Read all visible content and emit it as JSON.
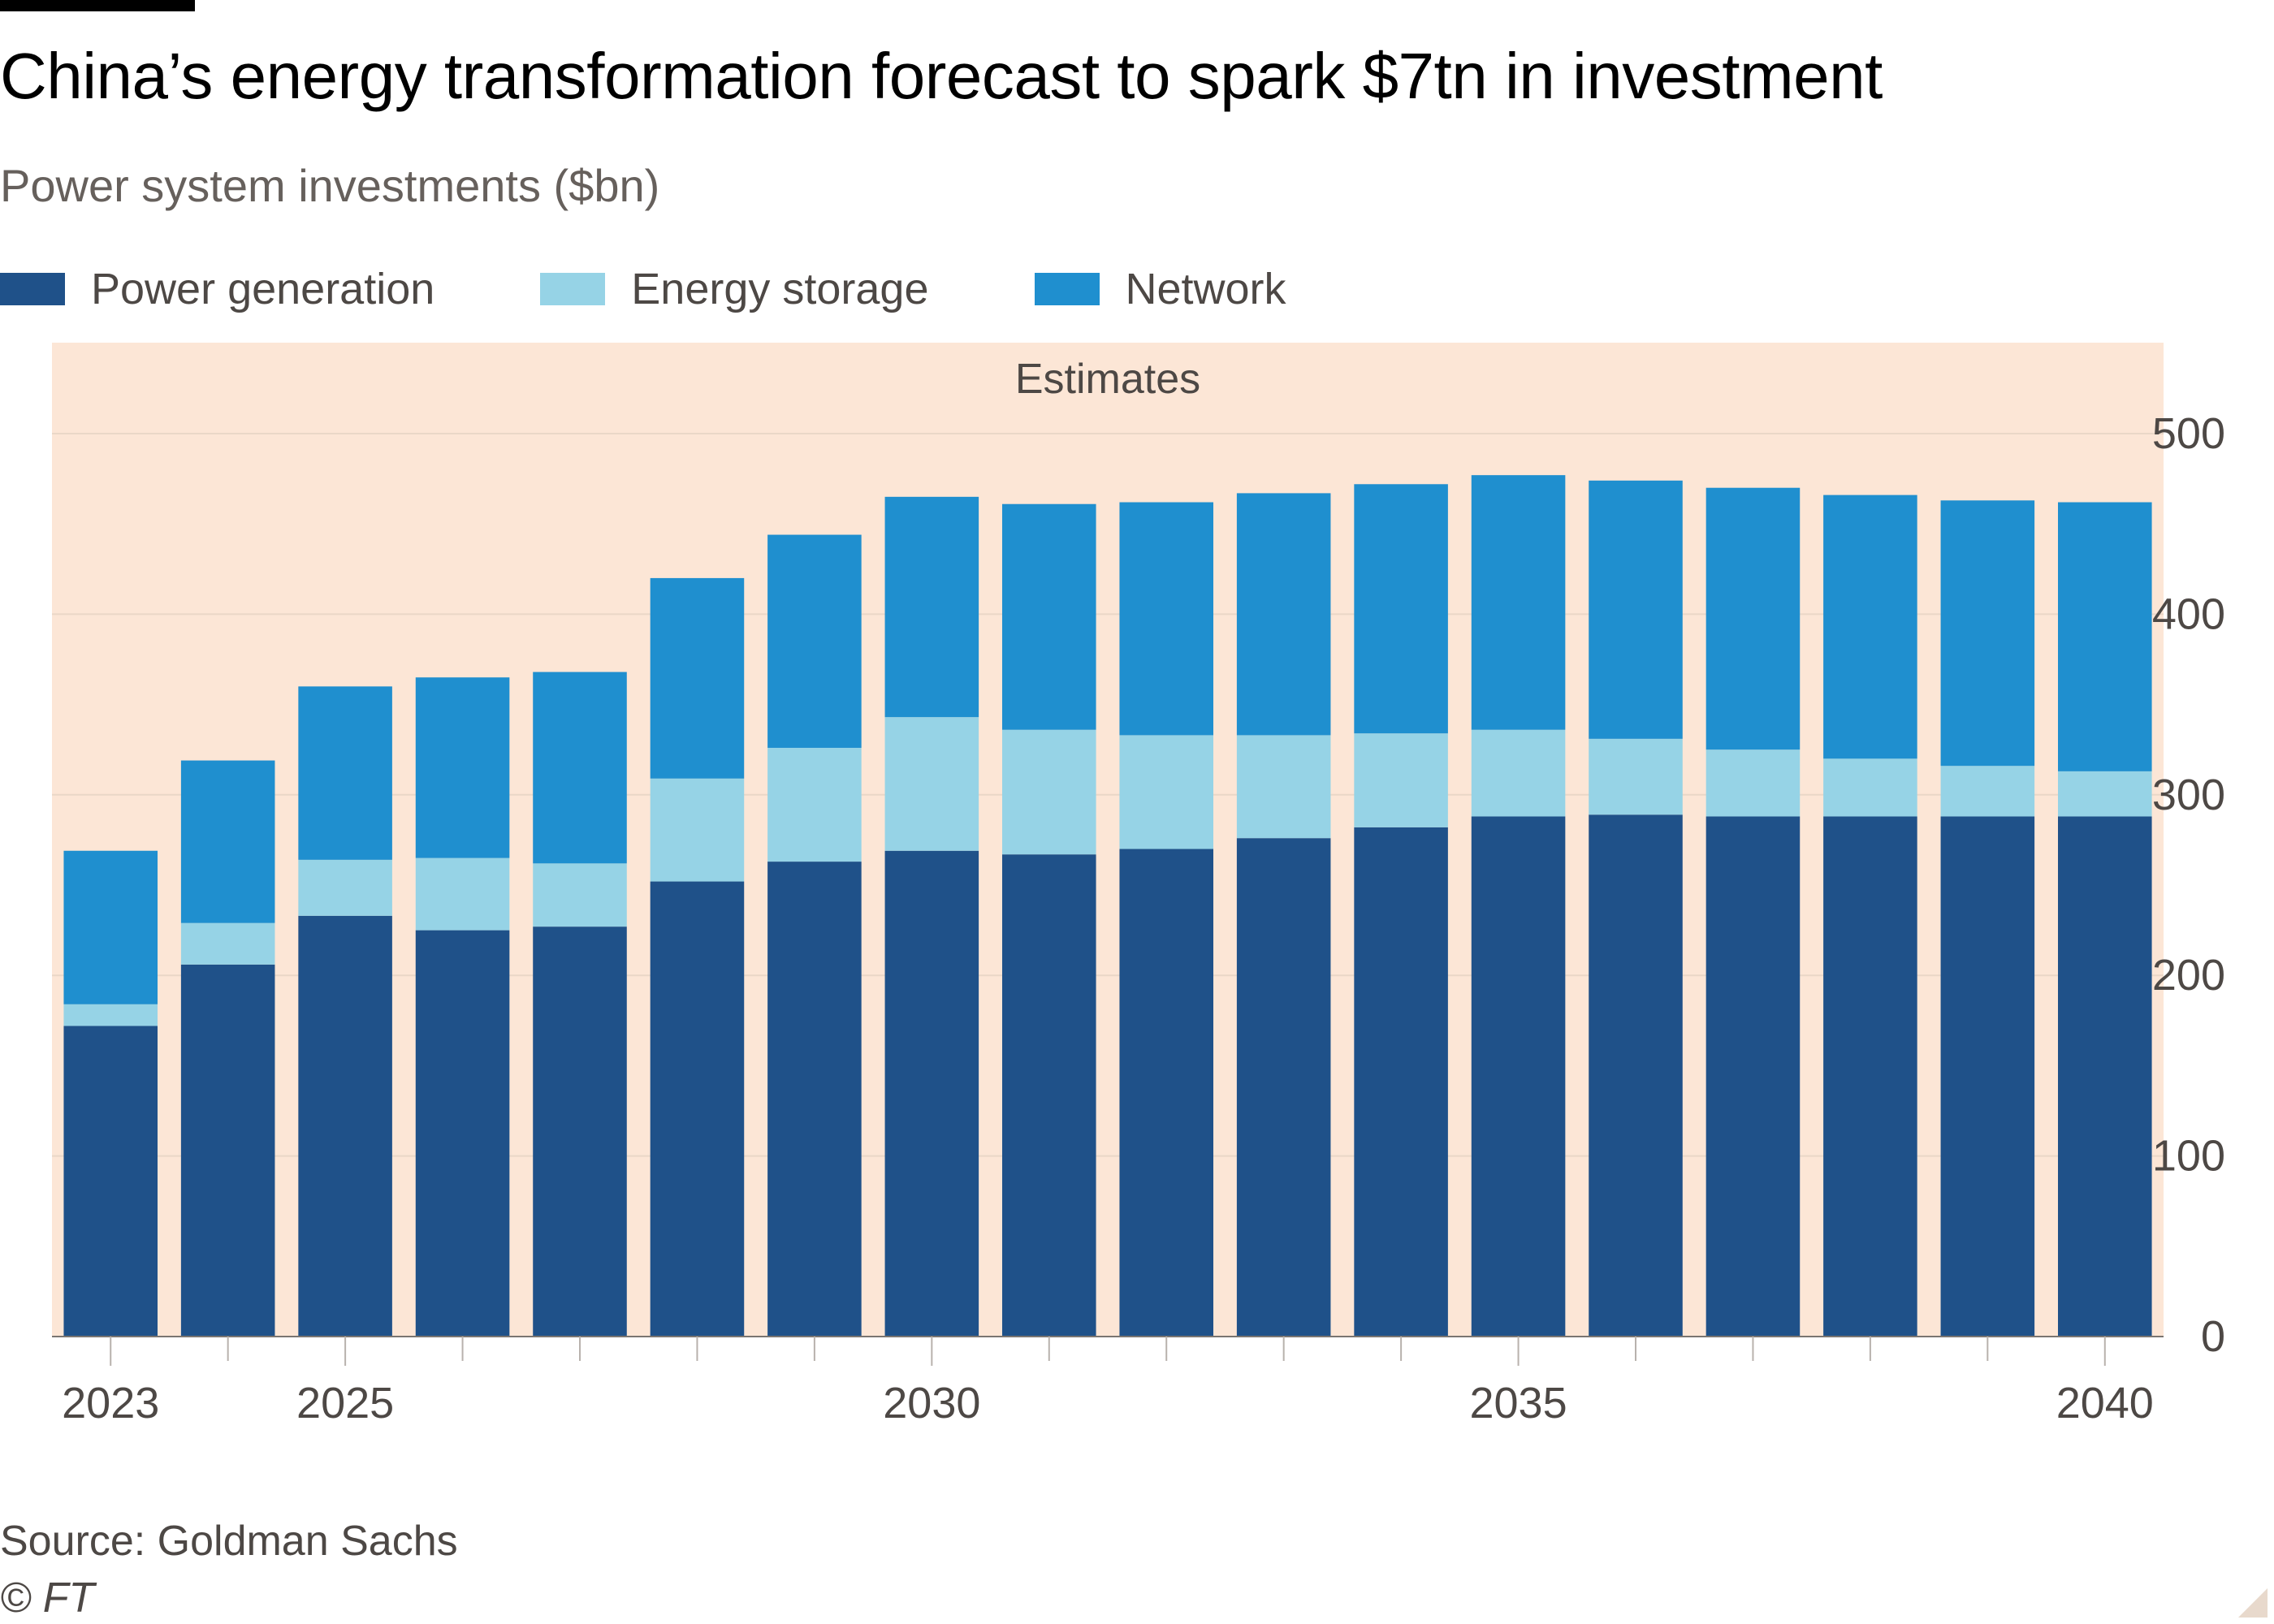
{
  "title": "China’s energy transformation forecast to spark $7tn in investment",
  "subtitle": "Power system investments ($bn)",
  "source": "Source: Goldman Sachs",
  "copyright": "© FT",
  "colors": {
    "power_generation": "#1f5189",
    "energy_storage": "#96d3e6",
    "network": "#1f8fcf",
    "estimates_band": "#fce6d6"
  },
  "chart_data": {
    "type": "bar",
    "stacked": true,
    "title": "China’s energy transformation forecast to spark $7tn in investment",
    "subtitle": "Power system investments ($bn)",
    "x": [
      2023,
      2024,
      2025,
      2026,
      2027,
      2028,
      2029,
      2030,
      2031,
      2032,
      2033,
      2034,
      2035,
      2036,
      2037,
      2038,
      2039,
      2040
    ],
    "x_tick_labels": [
      "2023",
      "2025",
      "2030",
      "2035",
      "2040"
    ],
    "y_tick_labels": [
      "0",
      "100",
      "200",
      "300",
      "400",
      "500"
    ],
    "ylim": [
      0,
      500
    ],
    "y_axis_position": "right",
    "legend_position": "top",
    "annotation": {
      "label": "Estimates",
      "x_range": [
        2023,
        2040
      ]
    },
    "series": [
      {
        "name": "Power generation",
        "values": [
          172,
          206,
          233,
          225,
          227,
          252,
          263,
          269,
          267,
          270,
          276,
          282,
          288,
          289,
          288,
          288,
          288,
          288
        ]
      },
      {
        "name": "Energy storage",
        "values": [
          12,
          23,
          31,
          40,
          35,
          57,
          63,
          74,
          69,
          63,
          57,
          52,
          48,
          42,
          37,
          32,
          28,
          25
        ]
      },
      {
        "name": "Network",
        "values": [
          85,
          90,
          96,
          100,
          106,
          111,
          118,
          122,
          125,
          129,
          134,
          138,
          141,
          143,
          145,
          146,
          147,
          149
        ]
      }
    ]
  }
}
